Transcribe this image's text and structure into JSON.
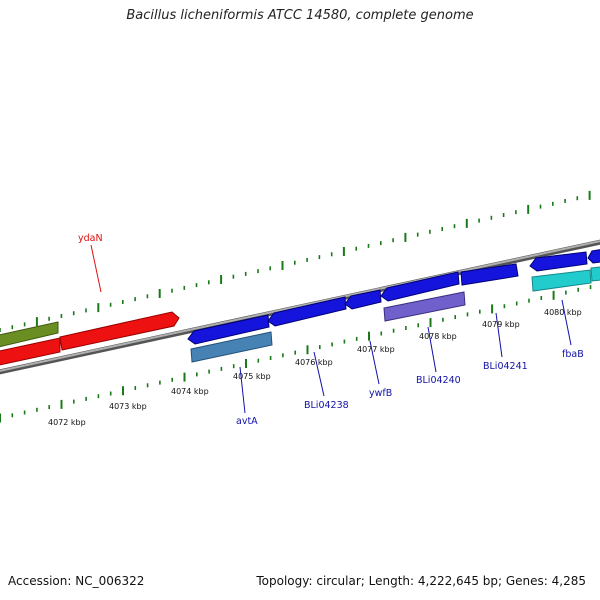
{
  "title": "Bacillus licheniformis ATCC 14580, complete genome",
  "footer": {
    "accession": "Accession: NC_006322",
    "summary": "Topology: circular; Length: 4,222,645 bp; Genes: 4,285"
  },
  "colors": {
    "backbone": "#8a8a8a",
    "ticks": "#1a7a1a",
    "forward_label": "#dd1111",
    "reverse_label": "#1111aa",
    "gene_red": "#ee1111",
    "gene_olive": "#6b8e23",
    "gene_blue": "#1414dd",
    "gene_steel": "#4682b4",
    "gene_slate": "#7060cc",
    "gene_cyan": "#22cccc"
  },
  "tick_labels": [
    {
      "key": "4072",
      "text": "4072 kbp"
    },
    {
      "key": "4073",
      "text": "4073 kbp"
    },
    {
      "key": "4074",
      "text": "4074 kbp"
    },
    {
      "key": "4075",
      "text": "4075 kbp"
    },
    {
      "key": "4076",
      "text": "4076 kbp"
    },
    {
      "key": "4077",
      "text": "4077 kbp"
    },
    {
      "key": "4078",
      "text": "4078 kbp"
    },
    {
      "key": "4079",
      "text": "4079 kbp"
    },
    {
      "key": "4080",
      "text": "4080 kbp"
    }
  ],
  "gene_labels": [
    {
      "key": "ydaN",
      "text": "ydaN",
      "strand": "forward"
    },
    {
      "key": "avtA",
      "text": "avtA",
      "strand": "reverse"
    },
    {
      "key": "BLi04238",
      "text": "BLi04238",
      "strand": "reverse"
    },
    {
      "key": "ywfB",
      "text": "ywfB",
      "strand": "reverse"
    },
    {
      "key": "BLi04240",
      "text": "BLi04240",
      "strand": "reverse"
    },
    {
      "key": "BLi04241",
      "text": "BLi04241",
      "strand": "reverse"
    },
    {
      "key": "fbaB",
      "text": "fbaB",
      "strand": "reverse"
    }
  ]
}
